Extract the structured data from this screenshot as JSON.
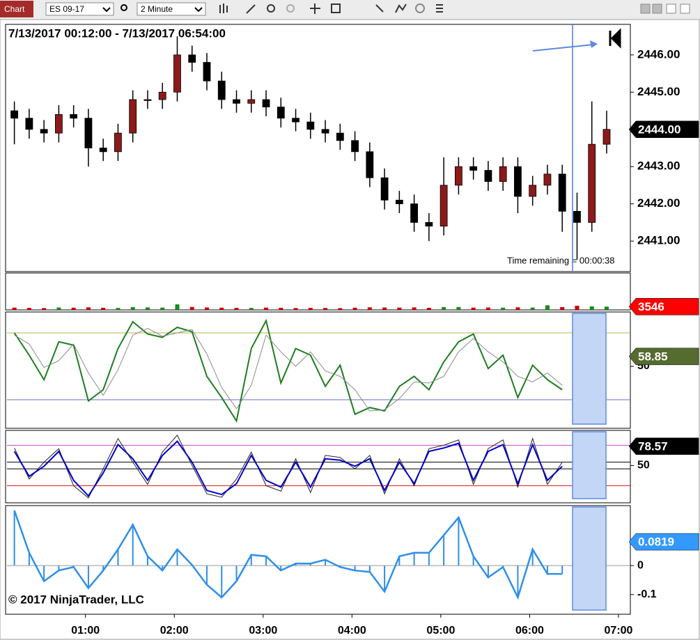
{
  "toolbar": {
    "title": "Chart",
    "instrument": "ES 09-17",
    "interval": "2 Minute"
  },
  "annotations": {
    "range": "7/13/2017 00:12:00 - 7/13/2017 06:54:00",
    "time_remaining": "Time remaining = 00:00:38",
    "copyright": "© 2017 NinjaTrader, LLC"
  },
  "chart_data": [
    {
      "type": "candlestick",
      "x": [
        "00:12",
        "00:22",
        "00:32",
        "00:42",
        "00:52",
        "01:02",
        "01:12",
        "01:22",
        "01:32",
        "01:42",
        "01:52",
        "02:02",
        "02:12",
        "02:22",
        "02:32",
        "02:42",
        "02:52",
        "03:02",
        "03:12",
        "03:22",
        "03:32",
        "03:42",
        "03:52",
        "04:02",
        "04:12",
        "04:22",
        "04:32",
        "04:42",
        "04:52",
        "05:02",
        "05:12",
        "05:22",
        "05:32",
        "05:42",
        "05:52",
        "06:02",
        "06:12",
        "06:22",
        "06:32",
        "06:42",
        "06:52"
      ],
      "open": [
        2444.5,
        2444.3,
        2444.0,
        2443.9,
        2444.4,
        2444.3,
        2443.5,
        2443.4,
        2443.9,
        2444.8,
        2444.8,
        2445.0,
        2446.0,
        2445.8,
        2445.3,
        2444.8,
        2444.7,
        2444.8,
        2444.6,
        2444.3,
        2444.2,
        2444.0,
        2443.9,
        2443.7,
        2443.4,
        2442.7,
        2442.1,
        2442.0,
        2441.5,
        2441.4,
        2442.5,
        2443.0,
        2442.9,
        2442.6,
        2443.0,
        2442.2,
        2442.5,
        2442.8,
        2441.8,
        2441.5,
        2443.6
      ],
      "high": [
        2444.75,
        2444.55,
        2444.25,
        2444.65,
        2444.65,
        2444.55,
        2443.75,
        2444.15,
        2445.05,
        2445.05,
        2445.25,
        2446.5,
        2446.25,
        2446.05,
        2445.55,
        2445.05,
        2445.05,
        2445.05,
        2444.85,
        2444.55,
        2444.45,
        2444.25,
        2444.15,
        2443.95,
        2443.65,
        2442.95,
        2442.35,
        2442.25,
        2441.75,
        2443.25,
        2443.25,
        2443.25,
        2443.15,
        2443.25,
        2443.25,
        2442.75,
        2443.05,
        2443.05,
        2442.3,
        2444.75,
        2444.5
      ],
      "low": [
        2443.6,
        2443.75,
        2443.65,
        2443.65,
        2444.05,
        2443.0,
        2443.15,
        2443.15,
        2443.65,
        2444.55,
        2444.55,
        2444.75,
        2445.55,
        2445.05,
        2444.55,
        2444.45,
        2444.45,
        2444.35,
        2444.05,
        2443.95,
        2443.75,
        2443.65,
        2443.45,
        2443.15,
        2442.45,
        2441.85,
        2441.75,
        2441.25,
        2441.0,
        2441.15,
        2442.25,
        2442.65,
        2442.35,
        2442.35,
        2441.75,
        2441.95,
        2442.25,
        2441.25,
        2440.5,
        2441.25,
        2443.35
      ],
      "close": [
        2444.3,
        2444.0,
        2443.9,
        2444.4,
        2444.3,
        2443.5,
        2443.4,
        2443.9,
        2444.8,
        2444.8,
        2445.0,
        2446.0,
        2445.8,
        2445.3,
        2444.8,
        2444.7,
        2444.8,
        2444.6,
        2444.3,
        2444.2,
        2444.0,
        2443.9,
        2443.7,
        2443.4,
        2442.7,
        2442.1,
        2442.0,
        2441.5,
        2441.4,
        2442.5,
        2443.0,
        2442.9,
        2442.6,
        2443.0,
        2442.2,
        2442.5,
        2442.8,
        2441.8,
        2441.5,
        2443.6,
        2444.0
      ],
      "up_color": "#8b1a1a",
      "down_color": "#000000",
      "xlim": [
        "00:07",
        "07:08"
      ],
      "ylim": [
        2440.18,
        2446.82
      ],
      "yticks": [
        {
          "value": 2441,
          "label": "2441.00"
        },
        {
          "value": 2442,
          "label": "2442.00"
        },
        {
          "value": 2443,
          "label": "2443.00"
        },
        {
          "value": 2444,
          "label": "2444.00"
        },
        {
          "value": 2445,
          "label": "2445.00"
        },
        {
          "value": 2446,
          "label": "2446.00"
        }
      ],
      "last": {
        "value": 2444,
        "label": "2444.00"
      },
      "last_color": "#000000"
    },
    {
      "type": "bar",
      "x": [
        "00:12",
        "00:22",
        "00:32",
        "00:42",
        "00:52",
        "01:02",
        "01:12",
        "01:22",
        "01:32",
        "01:42",
        "01:52",
        "02:02",
        "02:12",
        "02:22",
        "02:32",
        "02:42",
        "02:52",
        "03:02",
        "03:12",
        "03:22",
        "03:32",
        "03:42",
        "03:52",
        "04:02",
        "04:12",
        "04:22",
        "04:32",
        "04:42",
        "04:52",
        "05:02",
        "05:12",
        "05:22",
        "05:32",
        "05:42",
        "05:52",
        "06:02",
        "06:12",
        "06:22",
        "06:32",
        "06:42",
        "06:52"
      ],
      "values": [
        2500,
        2200,
        2000,
        2600,
        2400,
        2800,
        2300,
        2100,
        3000,
        2700,
        2500,
        6000,
        3200,
        2600,
        2400,
        2200,
        2100,
        2500,
        2300,
        2000,
        2200,
        2100,
        1900,
        2400,
        2800,
        2600,
        2500,
        2700,
        2300,
        3000,
        3100,
        2500,
        2600,
        2400,
        2800,
        2500,
        5000,
        3000,
        4500,
        3800,
        3546
      ],
      "up_color": "#1a8a1a",
      "down_color": "#cc0000",
      "xlim": [
        "00:07",
        "07:08"
      ],
      "ylim": [
        0,
        40000
      ],
      "last": 3546,
      "last_color": "#ff0000"
    },
    {
      "type": "line",
      "x": [
        "00:12",
        "00:22",
        "00:32",
        "00:42",
        "00:52",
        "01:02",
        "01:12",
        "01:22",
        "01:32",
        "01:42",
        "01:52",
        "02:02",
        "02:12",
        "02:22",
        "02:32",
        "02:42",
        "02:52",
        "03:02",
        "03:12",
        "03:22",
        "03:32",
        "03:42",
        "03:52",
        "04:02",
        "04:12",
        "04:22",
        "04:32",
        "04:42",
        "04:52",
        "05:02",
        "05:12",
        "05:22",
        "05:32",
        "05:42",
        "05:52",
        "06:02",
        "06:12",
        "06:22",
        "06:32",
        "06:42",
        "06:52"
      ],
      "series": [
        {
          "color": "#1e7d1e",
          "values": [
            80,
            60,
            38,
            72,
            69,
            19,
            29,
            66,
            90,
            79,
            76,
            85,
            81,
            41,
            22,
            1,
            66,
            91,
            35,
            66,
            60,
            32,
            51,
            7,
            13,
            10,
            32,
            41,
            29,
            54,
            72,
            79,
            48,
            60,
            22,
            51,
            38,
            29,
            null,
            null,
            null
          ]
        },
        {
          "color": "#8a8a8a",
          "values": [
            78,
            70,
            49,
            55,
            70,
            44,
            24,
            47,
            78,
            84,
            77,
            80,
            83,
            61,
            31,
            12,
            33,
            78,
            63,
            50,
            63,
            46,
            41,
            29,
            10,
            11,
            21,
            36,
            35,
            41,
            63,
            75,
            63,
            54,
            41,
            36,
            44,
            33,
            null,
            null,
            null
          ]
        }
      ],
      "levels": [
        {
          "value": 80,
          "color": "#b5b54a"
        },
        {
          "value": 20,
          "color": "#6a6ad0"
        }
      ],
      "xlim": [
        "00:07",
        "07:08"
      ],
      "ylim": [
        -5.6,
        98.75
      ],
      "yticks": [
        50
      ],
      "last": 58.85,
      "last_color": "#556b2f"
    },
    {
      "type": "line",
      "x": [
        "00:12",
        "00:22",
        "00:32",
        "00:42",
        "00:52",
        "01:02",
        "01:12",
        "01:22",
        "01:32",
        "01:42",
        "01:52",
        "02:02",
        "02:12",
        "02:22",
        "02:32",
        "02:42",
        "02:52",
        "03:02",
        "03:12",
        "03:22",
        "03:32",
        "03:42",
        "03:52",
        "04:02",
        "04:12",
        "04:22",
        "04:32",
        "04:42",
        "04:52",
        "05:02",
        "05:12",
        "05:22",
        "05:32",
        "05:42",
        "05:52",
        "06:02",
        "06:12",
        "06:22",
        "06:32",
        "06:42",
        "06:52"
      ],
      "series": [
        {
          "color": "#222222",
          "values": [
            76,
            30,
            55,
            75,
            20,
            2,
            45,
            90,
            55,
            22,
            70,
            95,
            50,
            8,
            3,
            30,
            70,
            20,
            12,
            60,
            10,
            65,
            62,
            45,
            65,
            8,
            60,
            20,
            75,
            80,
            88,
            22,
            75,
            88,
            18,
            90,
            22,
            55,
            null,
            null,
            null
          ]
        },
        {
          "color": "#0000cc",
          "values": [
            71,
            34,
            49,
            71,
            28,
            5,
            39,
            81,
            60,
            28,
            65,
            86,
            55,
            13,
            7,
            23,
            65,
            28,
            18,
            55,
            18,
            60,
            58,
            49,
            60,
            13,
            55,
            23,
            71,
            76,
            83,
            28,
            71,
            81,
            23,
            81,
            28,
            49,
            null,
            null,
            null
          ]
        }
      ],
      "levels": [
        {
          "value": 80,
          "color": "#cc44cc"
        },
        {
          "value": 55,
          "color": "#000000"
        },
        {
          "value": 45,
          "color": "#000000"
        },
        {
          "value": 20,
          "color": "#dd2222"
        }
      ],
      "xlim": [
        "00:07",
        "07:08"
      ],
      "ylim": [
        -5.3,
        102.1
      ],
      "yticks": [
        50
      ],
      "last": 78.57,
      "last_color": "#000000"
    },
    {
      "type": "bar",
      "outline": true,
      "x": [
        "00:12",
        "00:22",
        "00:32",
        "00:42",
        "00:52",
        "01:02",
        "01:12",
        "01:22",
        "01:32",
        "01:42",
        "01:52",
        "02:02",
        "02:12",
        "02:22",
        "02:32",
        "02:42",
        "02:52",
        "03:02",
        "03:12",
        "03:22",
        "03:32",
        "03:42",
        "03:52",
        "04:02",
        "04:12",
        "04:22",
        "04:32",
        "04:42",
        "04:52",
        "05:02",
        "05:12",
        "05:22",
        "05:32",
        "05:42",
        "05:52",
        "06:02",
        "06:12",
        "06:22",
        "06:32",
        "06:42",
        "06:52"
      ],
      "values": [
        0.19,
        0.044,
        -0.054,
        -0.017,
        -0.005,
        -0.078,
        -0.017,
        0.056,
        0.141,
        0.032,
        -0.017,
        0.056,
        0.002,
        -0.066,
        -0.11,
        -0.054,
        0.037,
        0.032,
        -0.017,
        0.007,
        0.007,
        0.02,
        -0.005,
        -0.017,
        -0.022,
        -0.09,
        0.032,
        0.044,
        0.044,
        0.105,
        0.166,
        0.032,
        -0.041,
        -0.005,
        -0.11,
        0.056,
        -0.029,
        -0.029,
        null,
        null,
        null
      ],
      "color": "#2f8fe8",
      "xlim": [
        "00:07",
        "07:08"
      ],
      "ylim": [
        -0.168,
        0.207
      ],
      "yticks": [
        0,
        -0.1
      ],
      "xticks": [
        "01:00",
        "02:00",
        "03:00",
        "04:00",
        "05:00",
        "06:00",
        "07:00"
      ],
      "last": 0.0819,
      "last_color": "#3399ff"
    }
  ]
}
